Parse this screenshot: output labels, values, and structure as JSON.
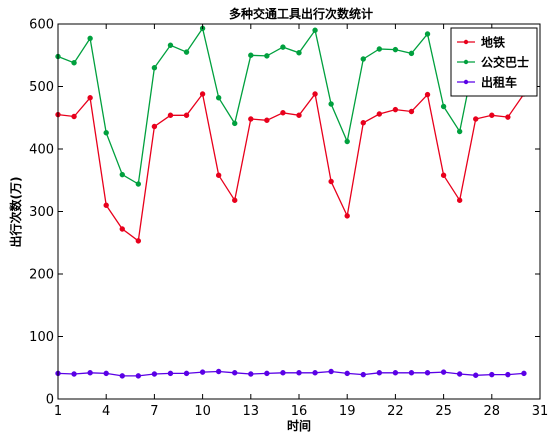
{
  "chart_data": {
    "type": "line",
    "title": "多种交通工具出行次数统计",
    "xlabel": "时间",
    "ylabel": "出行次数(万)",
    "xlim": [
      1,
      31
    ],
    "ylim": [
      0,
      600
    ],
    "xticks": [
      "1",
      "4",
      "7",
      "10",
      "13",
      "16",
      "19",
      "22",
      "25",
      "28",
      "31"
    ],
    "yticks": [
      "0",
      "100",
      "200",
      "300",
      "400",
      "500",
      "600"
    ],
    "grid": false,
    "legend_position": "top-right",
    "x": [
      1,
      2,
      3,
      4,
      5,
      6,
      7,
      8,
      9,
      10,
      11,
      12,
      13,
      14,
      15,
      16,
      17,
      18,
      19,
      20,
      21,
      22,
      23,
      24,
      25,
      26,
      27,
      28,
      29,
      30
    ],
    "series": [
      {
        "name": "地铁",
        "color": "#e8001c",
        "values": [
          455,
          452,
          482,
          310,
          272,
          253,
          436,
          454,
          454,
          488,
          358,
          318,
          448,
          446,
          458,
          454,
          488,
          348,
          293,
          442,
          456,
          463,
          460,
          487,
          358,
          318,
          448,
          454,
          451,
          488
        ]
      },
      {
        "name": "公交巴士",
        "color": "#00a03e",
        "values": [
          548,
          538,
          577,
          426,
          359,
          344,
          530,
          566,
          555,
          593,
          482,
          441,
          550,
          549,
          563,
          554,
          590,
          472,
          412,
          544,
          560,
          559,
          553,
          584,
          468,
          428,
          555,
          560,
          558,
          588
        ]
      },
      {
        "name": "出租车",
        "color": "#5a00e6",
        "values": [
          41,
          40,
          42,
          41,
          37,
          37,
          40,
          41,
          41,
          43,
          44,
          42,
          40,
          41,
          42,
          42,
          42,
          44,
          41,
          39,
          42,
          42,
          42,
          42,
          43,
          40,
          38,
          39,
          39,
          41
        ]
      }
    ]
  }
}
